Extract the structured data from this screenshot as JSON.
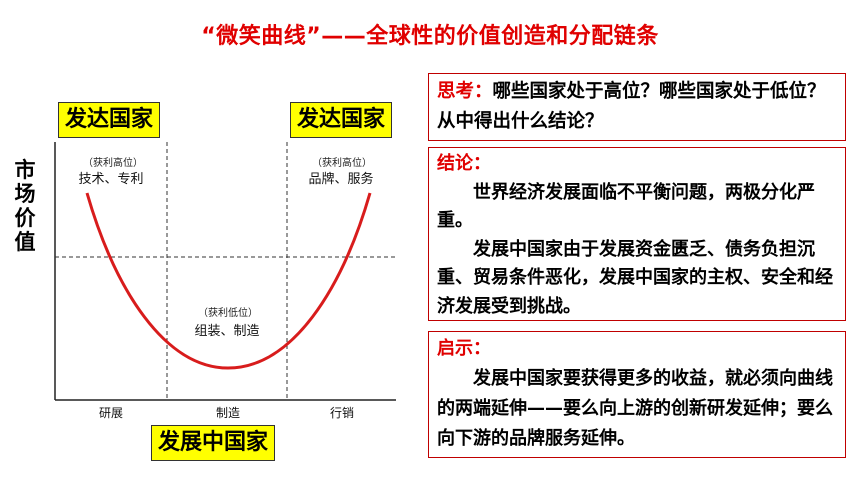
{
  "title": "“微笑曲线”——全球性的价值创造和分配链条",
  "tags": {
    "left_developed": "发达国家",
    "right_developed": "发达国家",
    "developing": "发展中国家"
  },
  "chart": {
    "ylabel_chars": [
      "市",
      "场",
      "价",
      "值"
    ],
    "left_note_small": "（获利高位）",
    "left_note": "技术、专利",
    "right_note_small": "（获利高位）",
    "right_note": "品牌、服务",
    "mid_note_small": "（获利低位）",
    "mid_note": "组装、制造",
    "x_labels": [
      "研展",
      "制造",
      "行销"
    ]
  },
  "think": {
    "header": "思考：",
    "text": "哪些国家处于高位？哪些国家处于低位？从中得出什么结论？"
  },
  "conclusion": {
    "header": "结论：",
    "para1": "世界经济发展面临不平衡问题，两极分化严重。",
    "para2": "发展中国家由于发展资金匮乏、债务负担沉重、贸易条件恶化，发展中国家的主权、安全和经济发展受到挑战。"
  },
  "inspiration": {
    "header": "启示：",
    "para1": "发展中国家要获得更多的收益，就必须向曲线的两端延伸——要么向上游的创新研发延伸；要么向下游的品牌服务延伸。"
  },
  "colors": {
    "title": "#e00000",
    "curve": "#d81c1c",
    "tag_bg": "#ffff00",
    "box_border": "#c00000"
  }
}
